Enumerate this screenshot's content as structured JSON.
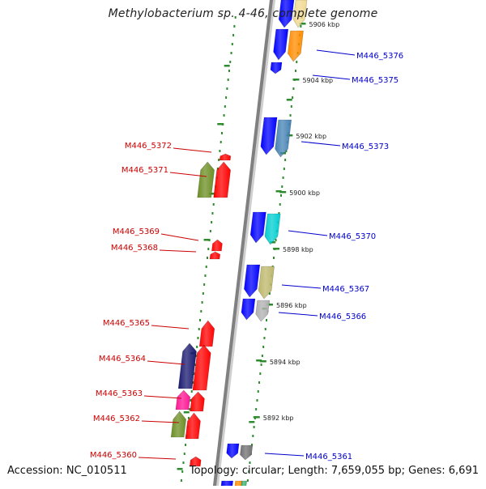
{
  "title": "Methylobacterium sp. 4-46, complete genome",
  "footer": {
    "accession": "Accession: NC_010511",
    "summary": "Topology: circular; Length: 7,659,055 bp; Genes: 6,691"
  },
  "colors": {
    "backbone": "#808080",
    "tick_marks": "#2e8b2e",
    "forward_label": "#0000cc",
    "reverse_label": "#cc0000"
  },
  "ticks": [
    {
      "label": "5906 kbp"
    },
    {
      "label": "5904 kbp"
    },
    {
      "label": "5902 kbp"
    },
    {
      "label": "5900 kbp"
    },
    {
      "label": "5898 kbp"
    },
    {
      "label": "5896 kbp"
    },
    {
      "label": "5894 kbp"
    },
    {
      "label": "5892 kbp"
    }
  ],
  "genes_forward": [
    {
      "label": "M446_5376",
      "color": "#ff8c00"
    },
    {
      "label": "M446_5375",
      "color": "#0000ff"
    },
    {
      "label": "M446_5373",
      "color": "#4682b4"
    },
    {
      "label": "M446_5370",
      "color": "#00ced1"
    },
    {
      "label": "M446_5367",
      "color": "#bdb76b"
    },
    {
      "label": "M446_5366",
      "color": "#b0b0b0"
    },
    {
      "label": "M446_5361",
      "color": "#707070"
    }
  ],
  "genes_reverse": [
    {
      "label": "M446_5372",
      "color": "#ff0000"
    },
    {
      "label": "M446_5371",
      "color": "#6b8e23"
    },
    {
      "label": "M446_5369",
      "color": "#ff0000"
    },
    {
      "label": "M446_5368",
      "color": "#ff0000"
    },
    {
      "label": "M446_5365",
      "color": "#ff0000"
    },
    {
      "label": "M446_5364",
      "color": "#191970"
    },
    {
      "label": "M446_5363",
      "color": "#ff1493"
    },
    {
      "label": "M446_5362",
      "color": "#6b8e23"
    },
    {
      "label": "M446_5360",
      "color": "#ff0000"
    }
  ]
}
